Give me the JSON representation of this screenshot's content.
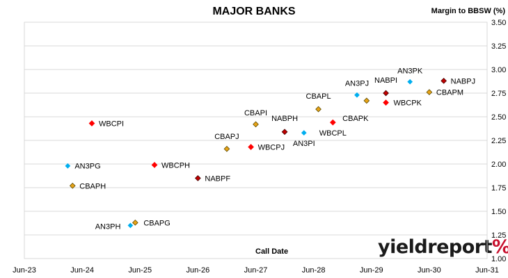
{
  "chart_data": {
    "type": "scatter",
    "title": "MAJOR BANKS",
    "ylabel": "Margin to BBSW (%)",
    "xlabel": "Call Date",
    "x_ticks": [
      "Jun-23",
      "Jun-24",
      "Jun-25",
      "Jun-26",
      "Jun-27",
      "Jun-28",
      "Jun-29",
      "Jun-30",
      "Jun-31"
    ],
    "y_ticks": [
      "1.00",
      "1.25",
      "1.50",
      "1.75",
      "2.00",
      "2.25",
      "2.50",
      "2.75",
      "3.00",
      "3.25",
      "3.50"
    ],
    "xlim": [
      "2023-06",
      "2031-06"
    ],
    "ylim": [
      1.0,
      3.5
    ],
    "grid": "horizontal",
    "points": [
      {
        "label": "WBCPI",
        "x": "2024-08",
        "y": 2.43,
        "bank": "WBC"
      },
      {
        "label": "AN3PG",
        "x": "2024-03",
        "y": 1.98,
        "bank": "ANZ"
      },
      {
        "label": "CBAPH",
        "x": "2024-04",
        "y": 1.77,
        "bank": "CBA"
      },
      {
        "label": "WBCPH",
        "x": "2025-09",
        "y": 1.99,
        "bank": "WBC"
      },
      {
        "label": "NABPF",
        "x": "2026-06",
        "y": 1.85,
        "bank": "NAB"
      },
      {
        "label": "AN3PH",
        "x": "2025-04",
        "y": 1.35,
        "bank": "ANZ"
      },
      {
        "label": "CBAPG",
        "x": "2025-05",
        "y": 1.38,
        "bank": "CBA"
      },
      {
        "label": "CBAPJ",
        "x": "2026-12",
        "y": 2.16,
        "bank": "CBA"
      },
      {
        "label": "WBCPJ",
        "x": "2027-05",
        "y": 2.18,
        "bank": "WBC"
      },
      {
        "label": "CBAPI",
        "x": "2027-06",
        "y": 2.42,
        "bank": "CBA"
      },
      {
        "label": "NABPH",
        "x": "2027-12",
        "y": 2.34,
        "bank": "NAB"
      },
      {
        "label": "AN3PI",
        "x": "2028-04",
        "y": 2.33,
        "bank": "ANZ"
      },
      {
        "label": "CBAPL",
        "x": "2028-07",
        "y": 2.58,
        "bank": "CBA"
      },
      {
        "label": "WBCPL",
        "x": "2028-10",
        "y": 2.44,
        "bank": "WBC"
      },
      {
        "label": "AN3PJ",
        "x": "2029-03",
        "y": 2.73,
        "bank": "ANZ"
      },
      {
        "label": "CBAPK",
        "x": "2029-05",
        "y": 2.67,
        "bank": "CBA"
      },
      {
        "label": "NABPI",
        "x": "2029-09",
        "y": 2.75,
        "bank": "NAB"
      },
      {
        "label": "WBCPK",
        "x": "2029-09",
        "y": 2.65,
        "bank": "WBC"
      },
      {
        "label": "AN3PK",
        "x": "2030-02",
        "y": 2.87,
        "bank": "ANZ"
      },
      {
        "label": "CBAPM",
        "x": "2030-06",
        "y": 2.76,
        "bank": "CBA"
      },
      {
        "label": "NABPJ",
        "x": "2030-09",
        "y": 2.88,
        "bank": "NAB"
      }
    ],
    "colors": {
      "WBC": "#ff0000",
      "ANZ": "#00aeef",
      "CBA": "#e8a317",
      "NAB": "#c00000"
    }
  },
  "logo": {
    "text": "yieldreport",
    "suffix": "%"
  }
}
